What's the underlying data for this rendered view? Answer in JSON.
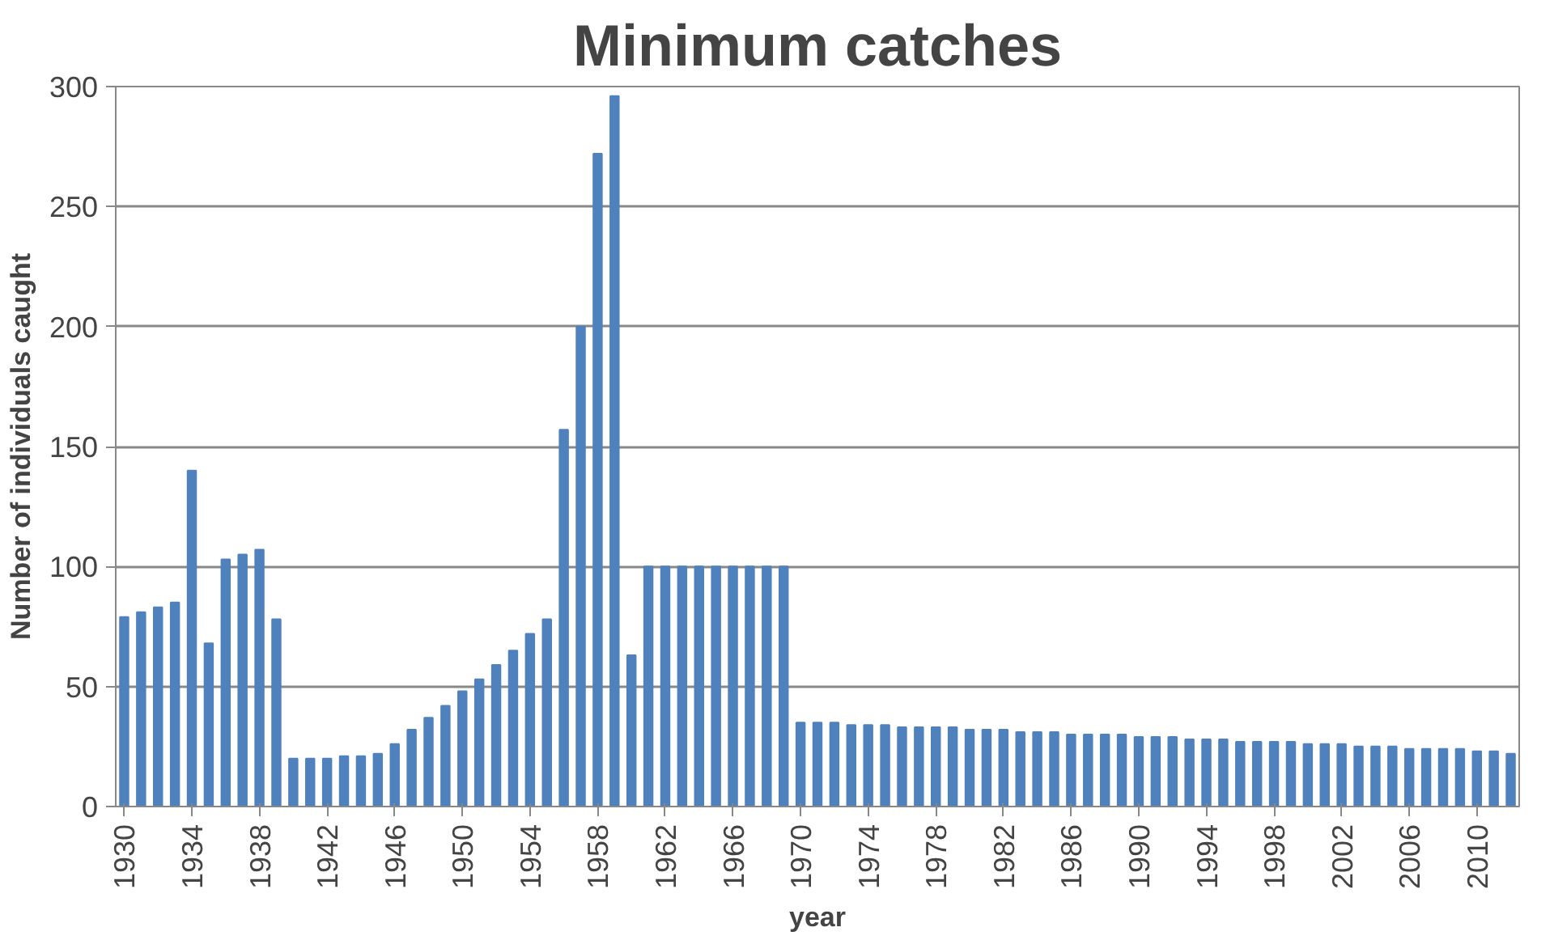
{
  "chart_data": {
    "type": "bar",
    "title": "Minimum catches",
    "xlabel": "year",
    "ylabel": "Number of individuals caught",
    "categories": [
      "1930",
      null,
      null,
      null,
      "1934",
      null,
      null,
      null,
      "1938",
      null,
      null,
      null,
      "1942",
      null,
      null,
      null,
      "1946",
      null,
      null,
      null,
      "1950",
      null,
      null,
      null,
      "1954",
      null,
      null,
      null,
      "1958",
      null,
      null,
      null,
      "1962",
      null,
      null,
      null,
      "1966",
      null,
      null,
      null,
      "1970",
      null,
      null,
      null,
      "1974",
      null,
      null,
      null,
      "1978",
      null,
      null,
      null,
      "1982",
      null,
      null,
      null,
      "1986",
      null,
      null,
      null,
      "1990",
      null,
      null,
      null,
      "1994",
      null,
      null,
      null,
      "1998",
      null,
      null,
      null,
      "2002",
      null,
      null,
      null,
      "2006",
      null,
      null,
      null,
      "2010",
      null,
      null
    ],
    "values": [
      79,
      81,
      83,
      85,
      140,
      68,
      103,
      105,
      107,
      78,
      20,
      20,
      20,
      21,
      21,
      22,
      26,
      32,
      37,
      42,
      48,
      53,
      59,
      65,
      72,
      78,
      157,
      200,
      272,
      296,
      63,
      100,
      100,
      100,
      100,
      100,
      100,
      100,
      100,
      100,
      35,
      35,
      35,
      34,
      34,
      34,
      33,
      33,
      33,
      33,
      32,
      32,
      32,
      31,
      31,
      31,
      30,
      30,
      30,
      30,
      29,
      29,
      29,
      28,
      28,
      28,
      27,
      27,
      27,
      27,
      26,
      26,
      26,
      25,
      25,
      25,
      24,
      24,
      24,
      24,
      23,
      23,
      22
    ],
    "color": "#4f81bd",
    "ylim": [
      0,
      300
    ],
    "yticks": [
      0,
      50,
      100,
      150,
      200,
      250,
      300
    ],
    "grid": "y"
  }
}
